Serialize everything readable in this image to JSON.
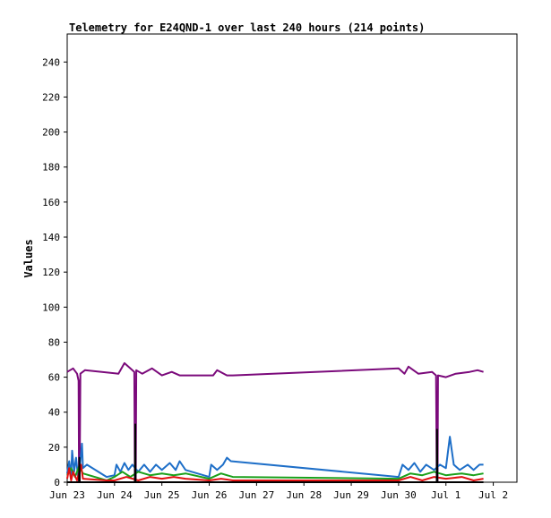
{
  "chart_data": {
    "type": "line",
    "title": "Telemetry for E24QND-1 over last 240 hours (214 points)",
    "xlabel": "",
    "ylabel": "Values",
    "ylim": [
      0,
      256
    ],
    "yticks": [
      0,
      20,
      40,
      60,
      80,
      100,
      120,
      140,
      160,
      180,
      200,
      220,
      240
    ],
    "xlim": [
      "2023-06-23T00:00",
      "2023-07-02T12:00"
    ],
    "xticks": [
      {
        "label": "Jun 23",
        "t": "2023-06-23T00:00"
      },
      {
        "label": "Jun 24",
        "t": "2023-06-24T00:00"
      },
      {
        "label": "Jun 25",
        "t": "2023-06-25T00:00"
      },
      {
        "label": "Jun 26",
        "t": "2023-06-26T00:00"
      },
      {
        "label": "Jun 27",
        "t": "2023-06-27T00:00"
      },
      {
        "label": "Jun 28",
        "t": "2023-06-28T00:00"
      },
      {
        "label": "Jun 29",
        "t": "2023-06-29T00:00"
      },
      {
        "label": "Jun 30",
        "t": "2023-06-30T00:00"
      },
      {
        "label": "Jul 1",
        "t": "2023-07-01T00:00"
      },
      {
        "label": "Jul 2",
        "t": "2023-07-02T00:00"
      }
    ],
    "grid": false,
    "legend": "none",
    "series": [
      {
        "color": "#7b0a7b",
        "points": [
          [
            "2023-06-23T00:00",
            63
          ],
          [
            "2023-06-23T03:00",
            65
          ],
          [
            "2023-06-23T05:00",
            62
          ],
          [
            "2023-06-23T05:45",
            58
          ],
          [
            "2023-06-23T06:00",
            0
          ],
          [
            "2023-06-23T06:20",
            0
          ],
          [
            "2023-06-23T06:40",
            62
          ],
          [
            "2023-06-23T09:00",
            64
          ],
          [
            "2023-06-24T02:00",
            62
          ],
          [
            "2023-06-24T05:00",
            68
          ],
          [
            "2023-06-24T08:00",
            65
          ],
          [
            "2023-06-24T10:00",
            63
          ],
          [
            "2023-06-24T10:20",
            0
          ],
          [
            "2023-06-24T10:45",
            0
          ],
          [
            "2023-06-24T11:00",
            64
          ],
          [
            "2023-06-24T14:00",
            62
          ],
          [
            "2023-06-24T19:00",
            65
          ],
          [
            "2023-06-25T00:00",
            61
          ],
          [
            "2023-06-25T05:00",
            63
          ],
          [
            "2023-06-25T09:00",
            61
          ],
          [
            "2023-06-26T02:00",
            61
          ],
          [
            "2023-06-26T04:00",
            64
          ],
          [
            "2023-06-26T09:00",
            61
          ],
          [
            "2023-06-26T12:00",
            61
          ],
          [
            "2023-06-30T00:00",
            65
          ],
          [
            "2023-06-30T03:00",
            62
          ],
          [
            "2023-06-30T05:00",
            66
          ],
          [
            "2023-06-30T10:00",
            62
          ],
          [
            "2023-06-30T17:00",
            63
          ],
          [
            "2023-06-30T19:00",
            61
          ],
          [
            "2023-06-30T19:20",
            0
          ],
          [
            "2023-06-30T19:45",
            0
          ],
          [
            "2023-06-30T20:00",
            61
          ],
          [
            "2023-07-01T00:00",
            60
          ],
          [
            "2023-07-01T05:00",
            62
          ],
          [
            "2023-07-01T12:00",
            63
          ],
          [
            "2023-07-01T16:00",
            64
          ],
          [
            "2023-07-01T19:00",
            63
          ]
        ]
      },
      {
        "color": "#1e6fc8",
        "points": [
          [
            "2023-06-23T00:00",
            5
          ],
          [
            "2023-06-23T01:00",
            12
          ],
          [
            "2023-06-23T02:00",
            4
          ],
          [
            "2023-06-23T02:30",
            18
          ],
          [
            "2023-06-23T03:30",
            6
          ],
          [
            "2023-06-23T04:30",
            14
          ],
          [
            "2023-06-23T05:30",
            3
          ],
          [
            "2023-06-23T06:30",
            10
          ],
          [
            "2023-06-23T07:30",
            22
          ],
          [
            "2023-06-23T08:00",
            8
          ],
          [
            "2023-06-23T10:00",
            10
          ],
          [
            "2023-06-23T20:00",
            3
          ],
          [
            "2023-06-24T00:00",
            4
          ],
          [
            "2023-06-24T01:00",
            10
          ],
          [
            "2023-06-24T03:00",
            6
          ],
          [
            "2023-06-24T05:00",
            11
          ],
          [
            "2023-06-24T07:00",
            7
          ],
          [
            "2023-06-24T09:00",
            10
          ],
          [
            "2023-06-24T12:00",
            6
          ],
          [
            "2023-06-24T15:00",
            10
          ],
          [
            "2023-06-24T18:00",
            6
          ],
          [
            "2023-06-24T21:00",
            10
          ],
          [
            "2023-06-25T00:00",
            7
          ],
          [
            "2023-06-25T04:00",
            11
          ],
          [
            "2023-06-25T07:00",
            7
          ],
          [
            "2023-06-25T09:00",
            12
          ],
          [
            "2023-06-25T12:00",
            7
          ],
          [
            "2023-06-26T00:00",
            3
          ],
          [
            "2023-06-26T01:00",
            10
          ],
          [
            "2023-06-26T04:00",
            7
          ],
          [
            "2023-06-26T07:00",
            10
          ],
          [
            "2023-06-26T09:00",
            14
          ],
          [
            "2023-06-26T11:00",
            12
          ],
          [
            "2023-06-30T00:00",
            3
          ],
          [
            "2023-06-30T02:00",
            10
          ],
          [
            "2023-06-30T05:00",
            7
          ],
          [
            "2023-06-30T08:00",
            11
          ],
          [
            "2023-06-30T11:00",
            6
          ],
          [
            "2023-06-30T14:00",
            10
          ],
          [
            "2023-06-30T18:00",
            7
          ],
          [
            "2023-06-30T21:00",
            10
          ],
          [
            "2023-07-01T00:00",
            8
          ],
          [
            "2023-07-01T02:00",
            26
          ],
          [
            "2023-07-01T04:00",
            10
          ],
          [
            "2023-07-01T07:00",
            7
          ],
          [
            "2023-07-01T11:00",
            10
          ],
          [
            "2023-07-01T14:00",
            7
          ],
          [
            "2023-07-01T17:00",
            10
          ],
          [
            "2023-07-01T19:00",
            10
          ]
        ]
      },
      {
        "color": "#1aa01a",
        "points": [
          [
            "2023-06-23T00:00",
            4
          ],
          [
            "2023-06-23T02:00",
            8
          ],
          [
            "2023-06-23T04:00",
            3
          ],
          [
            "2023-06-23T06:00",
            9
          ],
          [
            "2023-06-23T08:00",
            5
          ],
          [
            "2023-06-23T20:00",
            1
          ],
          [
            "2023-06-24T00:00",
            3
          ],
          [
            "2023-06-24T04:00",
            6
          ],
          [
            "2023-06-24T08:00",
            3
          ],
          [
            "2023-06-24T12:00",
            6
          ],
          [
            "2023-06-24T18:00",
            4
          ],
          [
            "2023-06-25T00:00",
            5
          ],
          [
            "2023-06-25T06:00",
            4
          ],
          [
            "2023-06-25T12:00",
            5
          ],
          [
            "2023-06-26T00:00",
            2
          ],
          [
            "2023-06-26T06:00",
            5
          ],
          [
            "2023-06-26T12:00",
            3
          ],
          [
            "2023-06-30T00:00",
            2
          ],
          [
            "2023-06-30T06:00",
            5
          ],
          [
            "2023-06-30T12:00",
            4
          ],
          [
            "2023-06-30T18:00",
            6
          ],
          [
            "2023-07-01T00:00",
            4
          ],
          [
            "2023-07-01T08:00",
            5
          ],
          [
            "2023-07-01T14:00",
            4
          ],
          [
            "2023-07-01T19:00",
            5
          ]
        ]
      },
      {
        "color": "#e01010",
        "points": [
          [
            "2023-06-23T00:00",
            2
          ],
          [
            "2023-06-23T01:00",
            8
          ],
          [
            "2023-06-23T02:00",
            1
          ],
          [
            "2023-06-23T03:00",
            6
          ],
          [
            "2023-06-23T05:00",
            1
          ],
          [
            "2023-06-23T07:00",
            10
          ],
          [
            "2023-06-23T08:00",
            2
          ],
          [
            "2023-06-23T20:00",
            1
          ],
          [
            "2023-06-24T00:00",
            1
          ],
          [
            "2023-06-24T06:00",
            3
          ],
          [
            "2023-06-24T12:00",
            1
          ],
          [
            "2023-06-24T18:00",
            3
          ],
          [
            "2023-06-25T00:00",
            2
          ],
          [
            "2023-06-25T06:00",
            3
          ],
          [
            "2023-06-25T12:00",
            2
          ],
          [
            "2023-06-26T00:00",
            1
          ],
          [
            "2023-06-26T06:00",
            2
          ],
          [
            "2023-06-26T12:00",
            1
          ],
          [
            "2023-06-30T00:00",
            1
          ],
          [
            "2023-06-30T06:00",
            3
          ],
          [
            "2023-06-30T12:00",
            1
          ],
          [
            "2023-06-30T18:00",
            3
          ],
          [
            "2023-07-01T00:00",
            2
          ],
          [
            "2023-07-01T08:00",
            3
          ],
          [
            "2023-07-01T14:00",
            1
          ],
          [
            "2023-07-01T19:00",
            2
          ]
        ]
      },
      {
        "color": "#000000",
        "points": [
          [
            "2023-06-23T00:00",
            0
          ],
          [
            "2023-06-23T06:00",
            0
          ],
          [
            "2023-06-23T06:10",
            14
          ],
          [
            "2023-06-23T06:20",
            0
          ],
          [
            "2023-06-24T10:20",
            0
          ],
          [
            "2023-06-24T10:30",
            33
          ],
          [
            "2023-06-24T10:40",
            0
          ],
          [
            "2023-06-30T19:20",
            0
          ],
          [
            "2023-06-30T19:30",
            30
          ],
          [
            "2023-06-30T19:40",
            0
          ],
          [
            "2023-07-01T19:00",
            0
          ]
        ]
      }
    ]
  }
}
